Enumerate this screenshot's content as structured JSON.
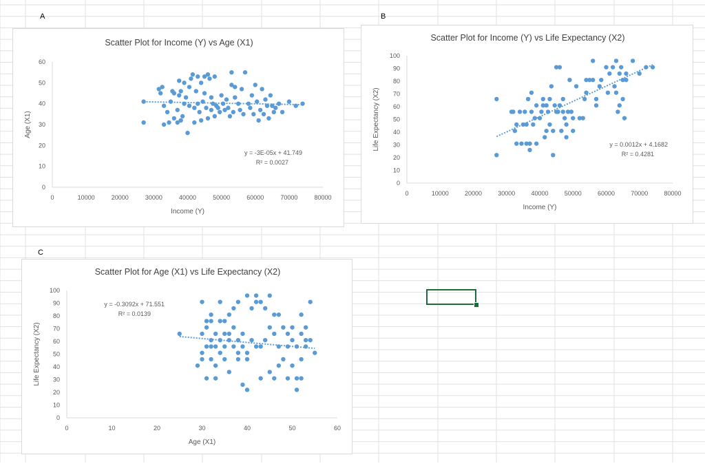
{
  "sheet": {
    "cell_labels": [
      "A",
      "B",
      "C"
    ]
  },
  "colors": {
    "point": "#5b9bd5",
    "trend": "#5b9bd5",
    "axis": "#d9d9d9",
    "text": "#595959",
    "title": "#404040",
    "selection": "#1d6b3a"
  },
  "chart_data": [
    {
      "type": "scatter",
      "title": "Scatter Plot for Income (Y) vs Age (X1)",
      "xlabel": "Income (Y)",
      "ylabel": "Age (X1)",
      "xlim": [
        0,
        80000
      ],
      "ylim": [
        0,
        60
      ],
      "xticks": [
        "0",
        "10000",
        "20000",
        "30000",
        "40000",
        "50000",
        "60000",
        "70000",
        "80000"
      ],
      "yticks": [
        "0",
        "10",
        "20",
        "30",
        "40",
        "50",
        "60"
      ],
      "grid": false,
      "trendline": {
        "slope": -3e-05,
        "intercept": 41.749,
        "x_range": [
          27000,
          74000
        ]
      },
      "equation": "y = -3E-05x + 41.749",
      "r2": "R² = 0.0027",
      "points": [
        [
          27000,
          31
        ],
        [
          27000,
          41
        ],
        [
          31500,
          47
        ],
        [
          32000,
          45
        ],
        [
          32500,
          48
        ],
        [
          33000,
          30
        ],
        [
          33000,
          39
        ],
        [
          34000,
          36
        ],
        [
          34500,
          31
        ],
        [
          35000,
          41
        ],
        [
          35500,
          46
        ],
        [
          36000,
          45
        ],
        [
          36000,
          33
        ],
        [
          37000,
          31
        ],
        [
          37000,
          37
        ],
        [
          37500,
          51
        ],
        [
          37500,
          44
        ],
        [
          38000,
          32
        ],
        [
          38000,
          46
        ],
        [
          38500,
          34
        ],
        [
          39000,
          50
        ],
        [
          39000,
          40
        ],
        [
          39500,
          43
        ],
        [
          40000,
          26
        ],
        [
          40500,
          48
        ],
        [
          40500,
          39
        ],
        [
          41000,
          52
        ],
        [
          41500,
          54
        ],
        [
          42000,
          31
        ],
        [
          42000,
          38
        ],
        [
          42500,
          46
        ],
        [
          43000,
          53
        ],
        [
          43000,
          40
        ],
        [
          43500,
          36
        ],
        [
          44000,
          50
        ],
        [
          44000,
          32
        ],
        [
          44500,
          41
        ],
        [
          45000,
          53
        ],
        [
          45000,
          45
        ],
        [
          45500,
          38
        ],
        [
          46000,
          54
        ],
        [
          46000,
          33
        ],
        [
          46500,
          52
        ],
        [
          47000,
          43
        ],
        [
          47000,
          37
        ],
        [
          47500,
          40
        ],
        [
          48000,
          34
        ],
        [
          48000,
          53
        ],
        [
          48500,
          39
        ],
        [
          49000,
          38
        ],
        [
          49500,
          36
        ],
        [
          50000,
          44
        ],
        [
          50500,
          40
        ],
        [
          51000,
          37
        ],
        [
          51500,
          42
        ],
        [
          52000,
          38
        ],
        [
          52500,
          34
        ],
        [
          53000,
          55
        ],
        [
          53000,
          49
        ],
        [
          53500,
          36
        ],
        [
          54000,
          48
        ],
        [
          54000,
          43
        ],
        [
          55000,
          40
        ],
        [
          55500,
          37
        ],
        [
          56000,
          47
        ],
        [
          56500,
          35
        ],
        [
          57000,
          55
        ],
        [
          58000,
          40
        ],
        [
          58500,
          38
        ],
        [
          59000,
          44
        ],
        [
          59500,
          35
        ],
        [
          60000,
          49
        ],
        [
          60500,
          41
        ],
        [
          61000,
          32
        ],
        [
          61500,
          37
        ],
        [
          62000,
          47
        ],
        [
          62500,
          35
        ],
        [
          63000,
          42
        ],
        [
          63500,
          39
        ],
        [
          64000,
          33
        ],
        [
          64500,
          44
        ],
        [
          65000,
          39
        ],
        [
          65500,
          36
        ],
        [
          66000,
          38
        ],
        [
          67000,
          40
        ],
        [
          68000,
          36
        ],
        [
          70000,
          41
        ],
        [
          72000,
          39
        ],
        [
          74000,
          40
        ]
      ]
    },
    {
      "type": "scatter",
      "title": "Scatter Plot for Income (Y) vs Life Expectancy (X2)",
      "xlabel": "Income (Y)",
      "ylabel": "Life Expectancy (X2)",
      "xlim": [
        0,
        80000
      ],
      "ylim": [
        0,
        100
      ],
      "xticks": [
        "0",
        "10000",
        "20000",
        "30000",
        "40000",
        "50000",
        "60000",
        "70000",
        "80000"
      ],
      "yticks": [
        "0",
        "10",
        "20",
        "30",
        "40",
        "50",
        "60",
        "70",
        "80",
        "90",
        "100"
      ],
      "grid": false,
      "trendline": {
        "slope": 0.0012,
        "intercept": 4.1682,
        "x_range": [
          27000,
          74000
        ]
      },
      "equation": "y = 0.0012x + 4.1682",
      "r2": "R² = 0.4281",
      "points": [
        [
          27000,
          22
        ],
        [
          27000,
          66
        ],
        [
          31500,
          56
        ],
        [
          32000,
          56
        ],
        [
          32500,
          41
        ],
        [
          33000,
          31
        ],
        [
          33000,
          46
        ],
        [
          34000,
          56
        ],
        [
          34500,
          31
        ],
        [
          35000,
          46
        ],
        [
          35500,
          56
        ],
        [
          36000,
          31
        ],
        [
          36000,
          46
        ],
        [
          36500,
          66
        ],
        [
          37000,
          31
        ],
        [
          37000,
          26
        ],
        [
          37500,
          56
        ],
        [
          37500,
          71
        ],
        [
          38000,
          46
        ],
        [
          38500,
          51
        ],
        [
          39000,
          31
        ],
        [
          39000,
          61
        ],
        [
          40000,
          51
        ],
        [
          40500,
          56
        ],
        [
          41000,
          61
        ],
        [
          41000,
          66
        ],
        [
          41500,
          36
        ],
        [
          42000,
          41
        ],
        [
          42000,
          61
        ],
        [
          42500,
          56
        ],
        [
          43000,
          66
        ],
        [
          43000,
          46
        ],
        [
          43500,
          76
        ],
        [
          44000,
          41
        ],
        [
          44000,
          22
        ],
        [
          44500,
          61
        ],
        [
          45000,
          56
        ],
        [
          45000,
          91
        ],
        [
          45500,
          56
        ],
        [
          46000,
          91
        ],
        [
          46000,
          61
        ],
        [
          46500,
          41
        ],
        [
          47000,
          66
        ],
        [
          47000,
          56
        ],
        [
          47500,
          51
        ],
        [
          48000,
          36
        ],
        [
          48000,
          46
        ],
        [
          48500,
          56
        ],
        [
          49000,
          81
        ],
        [
          49500,
          56
        ],
        [
          50000,
          41
        ],
        [
          50000,
          51
        ],
        [
          51000,
          76
        ],
        [
          52000,
          51
        ],
        [
          53000,
          51
        ],
        [
          53500,
          66
        ],
        [
          54000,
          81
        ],
        [
          54000,
          71
        ],
        [
          55000,
          81
        ],
        [
          56000,
          96
        ],
        [
          56000,
          81
        ],
        [
          57000,
          61
        ],
        [
          57000,
          66
        ],
        [
          58000,
          76
        ],
        [
          58500,
          81
        ],
        [
          60000,
          91
        ],
        [
          60500,
          71
        ],
        [
          61000,
          86
        ],
        [
          62000,
          91
        ],
        [
          62500,
          76
        ],
        [
          63000,
          71
        ],
        [
          63000,
          96
        ],
        [
          63500,
          56
        ],
        [
          64000,
          86
        ],
        [
          64000,
          61
        ],
        [
          64500,
          91
        ],
        [
          65000,
          81
        ],
        [
          65000,
          66
        ],
        [
          65500,
          51
        ],
        [
          66000,
          86
        ],
        [
          66000,
          81
        ],
        [
          68000,
          96
        ],
        [
          70000,
          86
        ],
        [
          72000,
          91
        ],
        [
          74000,
          91
        ]
      ]
    },
    {
      "type": "scatter",
      "title": "Scatter Plot for Age (X1) vs Life Expectancy (X2)",
      "xlabel": "Age (X1)",
      "ylabel": "Life Expectancy (X2)",
      "xlim": [
        0,
        60
      ],
      "ylim": [
        0,
        100
      ],
      "xticks": [
        "0",
        "10",
        "20",
        "30",
        "40",
        "50",
        "60"
      ],
      "yticks": [
        "0",
        "10",
        "20",
        "30",
        "40",
        "50",
        "60",
        "70",
        "80",
        "90",
        "100"
      ],
      "grid": false,
      "trendline": {
        "slope": -0.3092,
        "intercept": 71.551,
        "x_range": [
          25,
          55
        ]
      },
      "equation": "y = -0.3092x + 71.551",
      "r2": "R² = 0.0139",
      "points": [
        [
          25,
          66
        ],
        [
          29,
          41
        ],
        [
          30,
          91
        ],
        [
          30,
          66
        ],
        [
          30,
          51
        ],
        [
          30,
          46
        ],
        [
          31,
          56
        ],
        [
          31,
          31
        ],
        [
          31,
          76
        ],
        [
          31,
          71
        ],
        [
          32,
          81
        ],
        [
          32,
          61
        ],
        [
          32,
          56
        ],
        [
          32,
          46
        ],
        [
          32,
          76
        ],
        [
          33,
          41
        ],
        [
          33,
          66
        ],
        [
          33,
          31
        ],
        [
          33,
          56
        ],
        [
          34,
          91
        ],
        [
          34,
          76
        ],
        [
          34,
          61
        ],
        [
          34,
          51
        ],
        [
          35,
          76
        ],
        [
          35,
          66
        ],
        [
          35,
          56
        ],
        [
          35,
          46
        ],
        [
          36,
          81
        ],
        [
          36,
          66
        ],
        [
          36,
          61
        ],
        [
          36,
          36
        ],
        [
          37,
          86
        ],
        [
          37,
          71
        ],
        [
          37,
          56
        ],
        [
          38,
          91
        ],
        [
          38,
          61
        ],
        [
          38,
          51
        ],
        [
          38,
          46
        ],
        [
          39,
          66
        ],
        [
          39,
          56
        ],
        [
          39,
          26
        ],
        [
          40,
          96
        ],
        [
          40,
          51
        ],
        [
          40,
          46
        ],
        [
          40,
          22
        ],
        [
          41,
          86
        ],
        [
          41,
          61
        ],
        [
          42,
          96
        ],
        [
          42,
          91
        ],
        [
          42,
          56
        ],
        [
          43,
          91
        ],
        [
          43,
          56
        ],
        [
          43,
          31
        ],
        [
          44,
          86
        ],
        [
          44,
          61
        ],
        [
          45,
          96
        ],
        [
          45,
          71
        ],
        [
          45,
          36
        ],
        [
          46,
          81
        ],
        [
          46,
          66
        ],
        [
          46,
          31
        ],
        [
          47,
          56
        ],
        [
          47,
          41
        ],
        [
          47,
          81
        ],
        [
          48,
          71
        ],
        [
          48,
          46
        ],
        [
          49,
          66
        ],
        [
          49,
          56
        ],
        [
          49,
          31
        ],
        [
          50,
          71
        ],
        [
          50,
          61
        ],
        [
          50,
          41
        ],
        [
          51,
          56
        ],
        [
          51,
          31
        ],
        [
          51,
          22
        ],
        [
          52,
          81
        ],
        [
          52,
          66
        ],
        [
          52,
          46
        ],
        [
          52,
          31
        ],
        [
          53,
          56
        ],
        [
          53,
          71
        ],
        [
          53,
          61
        ],
        [
          54,
          91
        ],
        [
          54,
          61
        ],
        [
          55,
          51
        ]
      ]
    }
  ]
}
